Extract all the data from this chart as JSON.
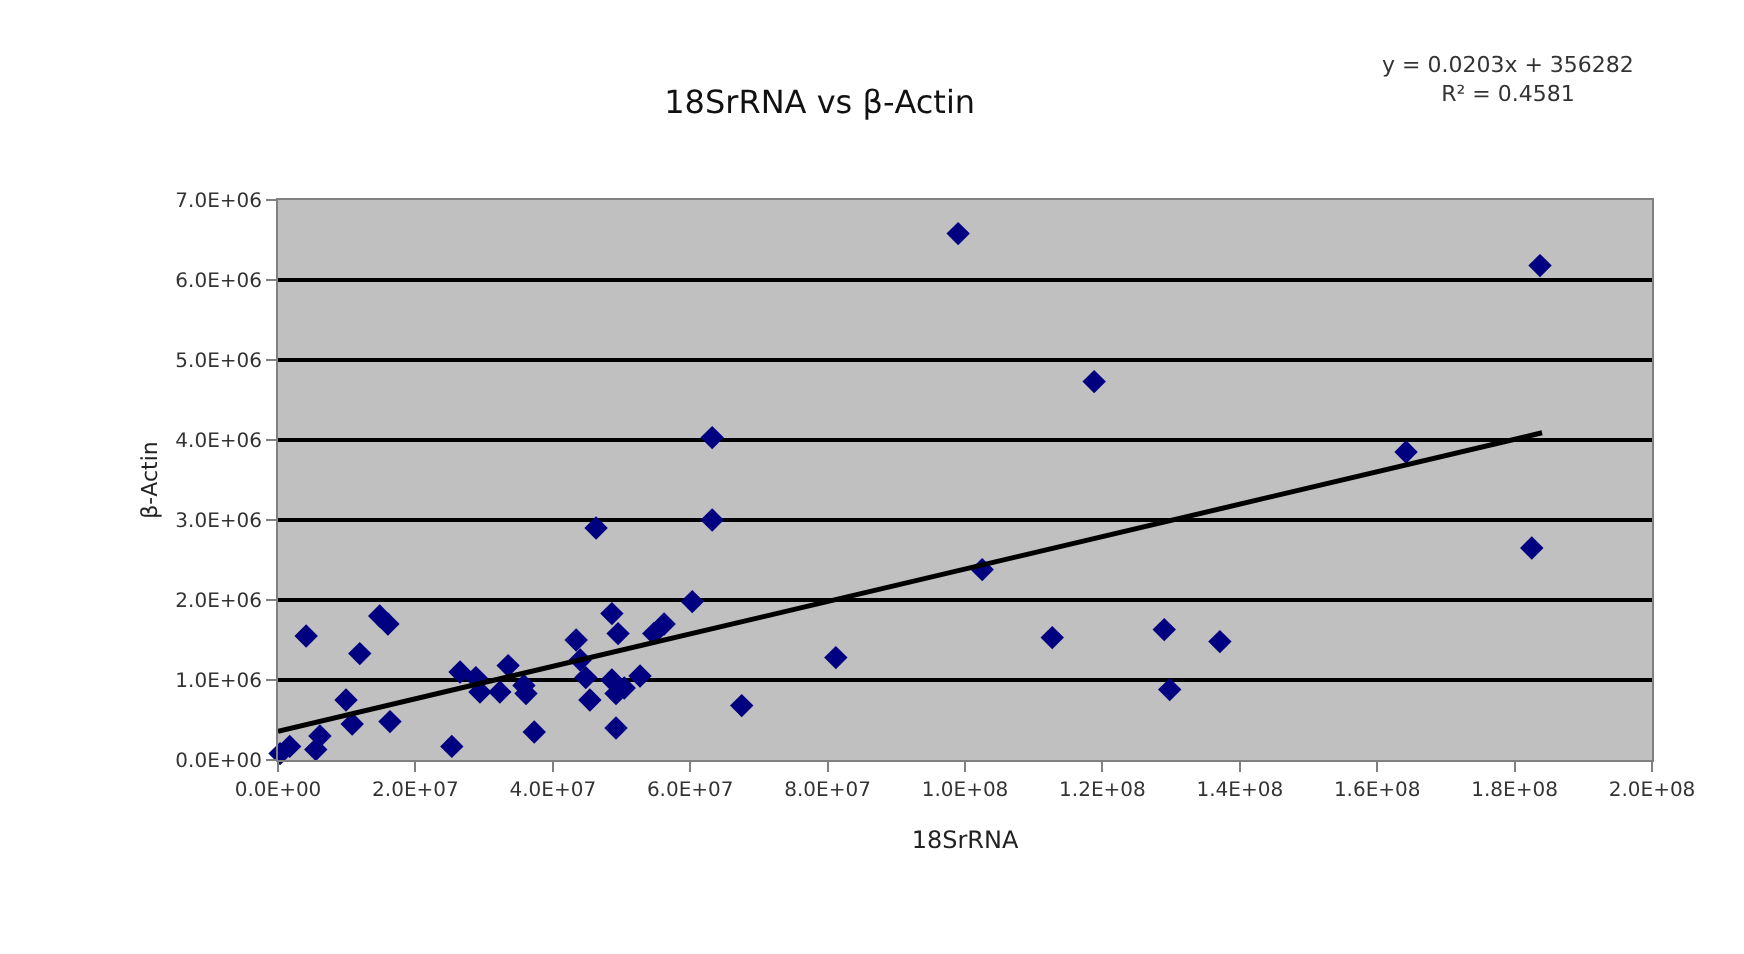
{
  "chart_data": {
    "type": "scatter",
    "title": "18SrRNA vs β-Actin",
    "xlabel": "18SrRNA",
    "ylabel": "β-Actin",
    "annotations": [
      "y = 0.0203x + 356282\nR² = 0.4581"
    ],
    "xlim": [
      0,
      200000000
    ],
    "ylim": [
      0,
      7000000
    ],
    "xticks": [
      {
        "value": 0,
        "label": "0.0E+00"
      },
      {
        "value": 20000000,
        "label": "2.0E+07"
      },
      {
        "value": 40000000,
        "label": "4.0E+07"
      },
      {
        "value": 60000000,
        "label": "6.0E+07"
      },
      {
        "value": 80000000,
        "label": "8.0E+07"
      },
      {
        "value": 100000000,
        "label": "1.0E+08"
      },
      {
        "value": 120000000,
        "label": "1.2E+08"
      },
      {
        "value": 140000000,
        "label": "1.4E+08"
      },
      {
        "value": 160000000,
        "label": "1.6E+08"
      },
      {
        "value": 180000000,
        "label": "1.8E+08"
      },
      {
        "value": 200000000,
        "label": "2.0E+08"
      }
    ],
    "yticks": [
      {
        "value": 0,
        "label": "0.0E+00"
      },
      {
        "value": 1000000,
        "label": "1.0E+06"
      },
      {
        "value": 2000000,
        "label": "2.0E+06"
      },
      {
        "value": 3000000,
        "label": "3.0E+06"
      },
      {
        "value": 4000000,
        "label": "4.0E+06"
      },
      {
        "value": 5000000,
        "label": "5.0E+06"
      },
      {
        "value": 6000000,
        "label": "6.0E+06"
      },
      {
        "value": 7000000,
        "label": "7.0E+06"
      }
    ],
    "grid": "y",
    "marker": "diamond",
    "series": [
      {
        "color": "#000080",
        "x": [
          99000000,
          63200000,
          63200000,
          46300000,
          60300000,
          48600000,
          49500000,
          56200000,
          54700000,
          43400000,
          44000000,
          44800000,
          48600000,
          52700000,
          49200000,
          50400000,
          45400000,
          49200000,
          67500000,
          81200000,
          4100000,
          14800000,
          16000000,
          11900000,
          9900000,
          10800000,
          16300000,
          6100000,
          5500000,
          300000,
          1700000,
          25300000,
          26500000,
          28800000,
          29400000,
          32300000,
          33500000,
          35800000,
          36100000,
          37300000,
          183700000,
          118800000,
          164200000,
          182500000,
          102500000,
          112700000,
          129000000,
          129800000,
          137100000
        ],
        "values": [
          6580000,
          4030000,
          3000000,
          2900000,
          1980000,
          1830000,
          1580000,
          1700000,
          1580000,
          1500000,
          1250000,
          1030000,
          1000000,
          1050000,
          830000,
          900000,
          750000,
          400000,
          680000,
          1280000,
          1550000,
          1800000,
          1700000,
          1330000,
          750000,
          450000,
          480000,
          300000,
          130000,
          80000,
          170000,
          170000,
          1100000,
          1030000,
          850000,
          850000,
          1180000,
          930000,
          830000,
          350000,
          6180000,
          4730000,
          3850000,
          2650000,
          2380000,
          1530000,
          1630000,
          880000,
          1480000
        ]
      },
      {
        "type": "line",
        "color": "#000000",
        "marker": "none",
        "line_style": "solid",
        "x": [
          0,
          184000000
        ],
        "values": [
          360000,
          4090000
        ]
      }
    ]
  }
}
